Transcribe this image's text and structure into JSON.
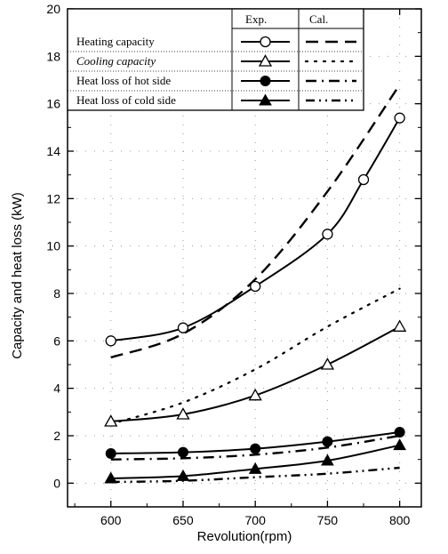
{
  "chart_data": {
    "type": "line",
    "xlabel": "Revolution(rpm)",
    "ylabel": "Capacity and heat loss (kW)",
    "xlim": [
      570,
      815
    ],
    "ylim": [
      -1,
      20
    ],
    "xticks": [
      600,
      650,
      700,
      750,
      800
    ],
    "yticks": [
      0,
      2,
      4,
      6,
      8,
      10,
      12,
      14,
      16,
      18,
      20
    ],
    "grid": "dotted",
    "legend": {
      "placement": "top-left",
      "header": [
        "Exp.",
        "Cal."
      ],
      "entries": [
        "Heating capacity",
        "Cooling capacity",
        "Heat loss of hot side",
        "Heat loss of cold side"
      ]
    },
    "series": [
      {
        "name": "Heating capacity",
        "kind": "Exp.",
        "marker": "open-circle",
        "x": [
          600,
          650,
          700,
          750,
          775,
          800
        ],
        "y": [
          6.0,
          6.55,
          8.3,
          10.5,
          12.8,
          15.4
        ]
      },
      {
        "name": "Heating capacity",
        "kind": "Cal.",
        "dash": "dash",
        "x": [
          600,
          650,
          700,
          750,
          800
        ],
        "y": [
          5.3,
          6.3,
          8.6,
          12.3,
          16.8
        ]
      },
      {
        "name": "Cooling capacity",
        "kind": "Exp.",
        "marker": "open-triangle",
        "x": [
          600,
          650,
          700,
          750,
          800
        ],
        "y": [
          2.6,
          2.9,
          3.7,
          5.0,
          6.6
        ]
      },
      {
        "name": "Cooling capacity",
        "kind": "Cal.",
        "dash": "dot",
        "x": [
          600,
          650,
          700,
          750,
          800
        ],
        "y": [
          2.5,
          3.4,
          4.8,
          6.6,
          8.2
        ]
      },
      {
        "name": "Heat loss of hot side",
        "kind": "Exp.",
        "marker": "filled-circle",
        "x": [
          600,
          650,
          700,
          750,
          800
        ],
        "y": [
          1.25,
          1.3,
          1.45,
          1.75,
          2.15
        ]
      },
      {
        "name": "Heat loss of hot side",
        "kind": "Cal.",
        "dash": "dash-dot",
        "x": [
          600,
          650,
          700,
          750,
          800
        ],
        "y": [
          1.0,
          1.05,
          1.2,
          1.5,
          2.0
        ]
      },
      {
        "name": "Heat loss of cold side",
        "kind": "Exp.",
        "marker": "filled-triangle",
        "x": [
          600,
          650,
          700,
          750,
          800
        ],
        "y": [
          0.2,
          0.3,
          0.6,
          0.95,
          1.6
        ]
      },
      {
        "name": "Heat loss of cold side",
        "kind": "Cal.",
        "dash": "dash-dot-dot",
        "x": [
          600,
          650,
          700,
          750,
          800
        ],
        "y": [
          0.05,
          0.1,
          0.25,
          0.4,
          0.65
        ]
      }
    ]
  }
}
